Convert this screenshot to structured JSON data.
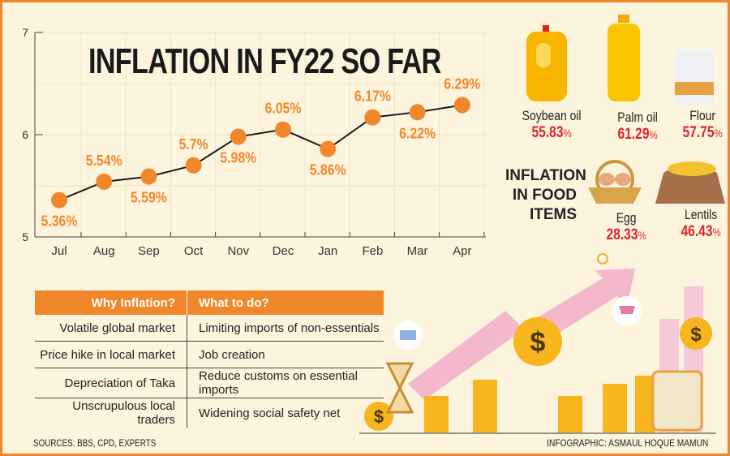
{
  "chart_data": {
    "type": "line",
    "title": "INFLATION IN FY22 SO FAR",
    "categories": [
      "Jul",
      "Aug",
      "Sep",
      "Oct",
      "Nov",
      "Dec",
      "Jan",
      "Feb",
      "Mar",
      "Apr"
    ],
    "values": [
      5.36,
      5.54,
      5.59,
      5.7,
      5.98,
      6.05,
      5.86,
      6.17,
      6.22,
      6.29
    ],
    "data_labels": [
      "5.36%",
      "5.54%",
      "5.59%",
      "5.7%",
      "5.98%",
      "6.05%",
      "5.86%",
      "6.17%",
      "6.22%",
      "6.29%"
    ],
    "ylim": [
      5,
      7
    ],
    "yticks": [
      "5",
      "6",
      "7"
    ],
    "grid": true,
    "line_color": "#1a1a1a",
    "marker_color": "#f0872a"
  },
  "food": {
    "heading_lines": [
      "INFLATION",
      "IN FOOD",
      "ITEMS"
    ],
    "items": [
      {
        "name": "Soybean oil",
        "value": "55.83",
        "unit": "%",
        "icon": "soybean-oil-jug-icon"
      },
      {
        "name": "Palm oil",
        "value": "61.29",
        "unit": "%",
        "icon": "palm-oil-bottle-icon"
      },
      {
        "name": "Flour",
        "value": "57.75",
        "unit": "%",
        "icon": "flour-bag-icon"
      },
      {
        "name": "Egg",
        "value": "28.33",
        "unit": "%",
        "icon": "egg-basket-icon"
      },
      {
        "name": "Lentils",
        "value": "46.43",
        "unit": "%",
        "icon": "lentils-sack-icon"
      }
    ],
    "value_color": "#d7262e"
  },
  "table": {
    "headers": [
      "Why Inflation?",
      "What to do?"
    ],
    "rows": [
      [
        "Volatile global market",
        "Limiting imports of non-essentials"
      ],
      [
        "Price hike in local market",
        "Job creation"
      ],
      [
        "Depreciation of Taka",
        "Reduce customs on essential imports"
      ],
      [
        "Unscrupulous local traders",
        "Widening social safety net"
      ]
    ]
  },
  "footer": {
    "sources": "SOURCES: BBS, CPD, EXPERTS",
    "credit": "INFOGRAPHIC: ASMAUL HOQUE MAMUN"
  },
  "colors": {
    "accent": "#f0872a",
    "background": "#fdf4de"
  }
}
